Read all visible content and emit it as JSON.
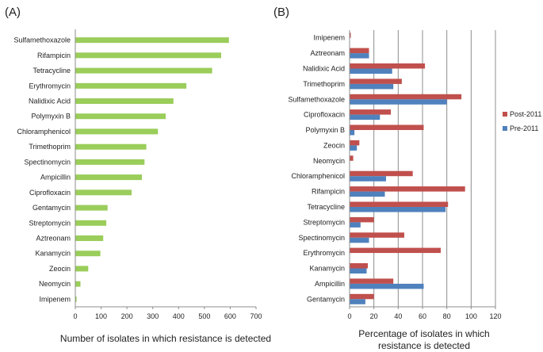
{
  "chart_data": [
    {
      "panel_label": "(A)",
      "type": "bar",
      "orientation": "horizontal",
      "categories": [
        "Sulfamethoxazole",
        "Rifampicin",
        "Tetracycline",
        "Erythromycin",
        "Nalidixic Acid",
        "Polymyxin B",
        "Chloramphenicol",
        "Trimethoprim",
        "Spectinomycin",
        "Ampicillin",
        "Ciprofloxacin",
        "Gentamycin",
        "Streptomycin",
        "Aztreonam",
        "Kanamycin",
        "Zeocin",
        "Neomycin",
        "Imipenem"
      ],
      "values": [
        595,
        565,
        530,
        430,
        380,
        350,
        320,
        275,
        268,
        258,
        218,
        125,
        120,
        108,
        97,
        50,
        20,
        5
      ],
      "xlabel": "Number of isolates in which resistance is detected",
      "ylabel": "",
      "xlim": [
        0,
        700
      ],
      "xticks": [
        "0",
        "100",
        "200",
        "300",
        "400",
        "500",
        "600",
        "700"
      ],
      "grid": false,
      "colors": {
        "bar": "#9acd5a"
      }
    },
    {
      "panel_label": "(B)",
      "type": "bar",
      "orientation": "horizontal",
      "categories": [
        "Imipenem",
        "Aztreonam",
        "Nalidixic Acid",
        "Trimethoprim",
        "Sulfamethoxazole",
        "Ciprofloxacin",
        "Polymyxin B",
        "Zeocin",
        "Neomycin",
        "Chloramphenicol",
        "Rifampicin",
        "Tetracycline",
        "Streptomycin",
        "Spectinomycin",
        "Erythromycin",
        "Kanamycin",
        "Ampicillin",
        "Gentamycin"
      ],
      "series": [
        {
          "name": "Post-2011",
          "color": "#c0504d",
          "values": [
            1,
            16,
            62,
            43,
            92,
            34,
            61,
            8,
            3,
            52,
            95,
            81,
            20,
            45,
            75,
            15,
            36,
            20
          ]
        },
        {
          "name": "Pre-2011",
          "color": "#4f81bd",
          "values": [
            0,
            16,
            35,
            36,
            80,
            25,
            4,
            6,
            0,
            30,
            29,
            79,
            9,
            16,
            0,
            14,
            61,
            13
          ]
        }
      ],
      "xlabel": "Percentage of isolates in which resistance is detected",
      "ylabel": "",
      "xlim": [
        0,
        120
      ],
      "xticks": [
        "0",
        "20",
        "40",
        "60",
        "80",
        "100",
        "120"
      ],
      "grid": true,
      "legend": "right"
    }
  ]
}
